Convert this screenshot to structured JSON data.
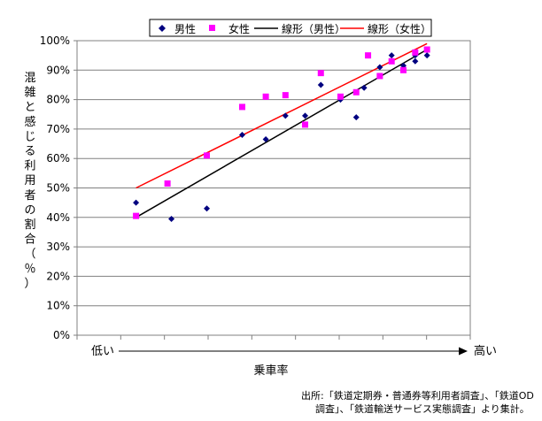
{
  "chart_data": {
    "type": "scatter",
    "xlabel": "乗車率",
    "x_low_label": "低い",
    "x_high_label": "高い",
    "ylabel_chars": [
      "混",
      "雑",
      "と",
      "感",
      "じ",
      "る",
      "利",
      "用",
      "者",
      "の",
      "割",
      "合",
      "（",
      "％",
      "）"
    ],
    "ylim": [
      0,
      100
    ],
    "y_ticks": [
      "0%",
      "10%",
      "20%",
      "30%",
      "40%",
      "50%",
      "60%",
      "70%",
      "80%",
      "90%",
      "100%"
    ],
    "y_tick_values": [
      0,
      10,
      20,
      30,
      40,
      50,
      60,
      70,
      80,
      90,
      100
    ],
    "x_range": [
      0,
      100
    ],
    "legend": [
      "男性",
      "女性",
      "線形（男性）",
      "線形（女性）"
    ],
    "series": [
      {
        "name": "男性",
        "marker": "diamond",
        "color": "#000080",
        "points": [
          [
            15,
            45
          ],
          [
            24,
            39.5
          ],
          [
            33,
            43
          ],
          [
            42,
            68
          ],
          [
            48,
            66.5
          ],
          [
            53,
            74.5
          ],
          [
            58,
            74.5
          ],
          [
            62,
            85
          ],
          [
            67,
            80
          ],
          [
            71,
            74
          ],
          [
            73,
            84
          ],
          [
            77,
            91
          ],
          [
            80,
            95
          ],
          [
            83,
            91.5
          ],
          [
            86,
            93
          ],
          [
            86,
            95
          ],
          [
            89,
            95
          ]
        ]
      },
      {
        "name": "女性",
        "marker": "square",
        "color": "#ff00ff",
        "points": [
          [
            15,
            40.5
          ],
          [
            23,
            51.5
          ],
          [
            33,
            61
          ],
          [
            42,
            77.5
          ],
          [
            48,
            81
          ],
          [
            53,
            81.5
          ],
          [
            58,
            71.5
          ],
          [
            62,
            89
          ],
          [
            67,
            81
          ],
          [
            71,
            82.5
          ],
          [
            74,
            95
          ],
          [
            77,
            88
          ],
          [
            80,
            93
          ],
          [
            83,
            90
          ],
          [
            86,
            96
          ],
          [
            89,
            97
          ]
        ]
      },
      {
        "name": "線形（男性）",
        "type": "trendline",
        "color": "#000000",
        "endpoints": [
          [
            15,
            40
          ],
          [
            89,
            97
          ]
        ]
      },
      {
        "name": "線形（女性）",
        "type": "trendline",
        "color": "#ff0000",
        "endpoints": [
          [
            15,
            50
          ],
          [
            89,
            99
          ]
        ]
      }
    ],
    "grid": "horizontal",
    "legend_position": "top"
  },
  "source_note": {
    "line1": "出所:「鉄道定期券・普通券等利用者調査」、「鉄道OD",
    "line2": "調査」、「鉄道輸送サービス実態調査」より集計。"
  }
}
